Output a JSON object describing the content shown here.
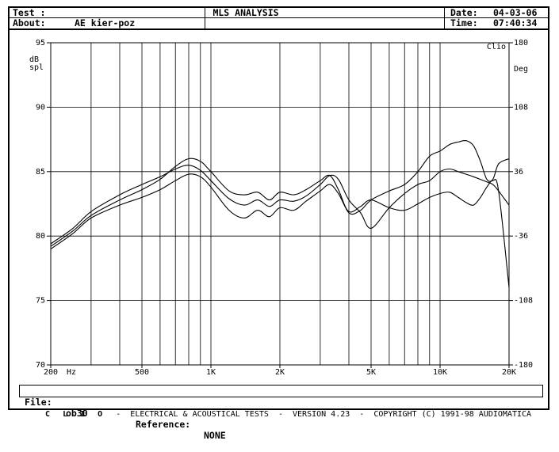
{
  "header": {
    "test_label": "Test :",
    "about_label": "About:",
    "about_value": "AE kier-poz",
    "title": "MLS ANALYSIS",
    "date_label": "Date:",
    "date_value": "04-03-06",
    "time_label": "Time:",
    "time_value": "07:40:34"
  },
  "file_bar": {
    "file_label": "File:",
    "file_value": "ob30",
    "reference_label": "Reference:",
    "reference_value": "NONE"
  },
  "footer": {
    "brand": "C L I O",
    "text": "-  ELECTRICAL & ACOUSTICAL TESTS  -  VERSION 4.23  -  COPYRIGHT (C) 1991-98 AUDIOMATICA"
  },
  "chart_data": {
    "type": "line",
    "xscale": "log",
    "xlim": [
      200,
      20000
    ],
    "ylim": [
      70,
      95
    ],
    "y2lim": [
      -180,
      180
    ],
    "x_ticks": [
      {
        "value": 200,
        "label": "200"
      },
      {
        "value": 500,
        "label": "500"
      },
      {
        "value": 1000,
        "label": "1K"
      },
      {
        "value": 2000,
        "label": "2K"
      },
      {
        "value": 5000,
        "label": "5K"
      },
      {
        "value": 10000,
        "label": "10K"
      },
      {
        "value": 20000,
        "label": "20K"
      }
    ],
    "x_unit": "Hz",
    "y_ticks": [
      70,
      75,
      80,
      85,
      90,
      95
    ],
    "y2_ticks": [
      -180,
      -108,
      -36,
      36,
      108,
      180
    ],
    "ylabel": [
      "dB",
      "spl"
    ],
    "y2label": "Deg",
    "corner_label": "Clio",
    "grid": true,
    "series": [
      {
        "x": [
          200,
          250,
          300,
          400,
          500,
          600,
          700,
          800,
          900,
          1000,
          1200,
          1400,
          1600,
          1800,
          2000,
          2300,
          2600,
          3000,
          3300,
          3600,
          4000,
          4500,
          5000,
          6000,
          7000,
          8000,
          9000,
          10000,
          11000,
          12000,
          13000,
          14000,
          15000,
          16000,
          17000,
          18000,
          20000
        ],
        "y": [
          79.2,
          80.4,
          81.6,
          82.8,
          83.6,
          84.4,
          85.4,
          86.0,
          85.8,
          85.0,
          83.5,
          83.2,
          83.4,
          82.8,
          83.4,
          83.2,
          83.6,
          84.3,
          84.7,
          83.6,
          81.8,
          82.0,
          82.8,
          83.5,
          84.0,
          85.0,
          86.2,
          86.6,
          87.1,
          87.3,
          87.4,
          87.0,
          85.8,
          84.4,
          84.4,
          85.6,
          86.0
        ]
      },
      {
        "x": [
          200,
          250,
          300,
          400,
          500,
          600,
          700,
          800,
          900,
          1000,
          1200,
          1400,
          1600,
          1800,
          2000,
          2300,
          2600,
          3000,
          3300,
          3600,
          4000,
          4500,
          5000,
          6000,
          7000,
          8000,
          9000,
          10000,
          11000,
          12000,
          13000,
          14000,
          15000,
          16000,
          17000,
          18000,
          20000
        ],
        "y": [
          79.4,
          80.6,
          81.9,
          83.2,
          84.0,
          84.6,
          85.2,
          85.5,
          85.1,
          84.3,
          82.9,
          82.4,
          82.8,
          82.3,
          82.8,
          82.7,
          83.1,
          84.0,
          84.7,
          84.4,
          82.8,
          81.8,
          80.6,
          82.2,
          83.3,
          84.0,
          84.3,
          85.0,
          85.2,
          85.0,
          84.8,
          84.6,
          84.4,
          84.2,
          84.0,
          83.5,
          82.4
        ]
      },
      {
        "x": [
          200,
          250,
          300,
          400,
          500,
          600,
          700,
          800,
          900,
          1000,
          1200,
          1400,
          1600,
          1800,
          2000,
          2300,
          2600,
          3000,
          3300,
          3600,
          4000,
          4500,
          5000,
          6000,
          7000,
          8000,
          9000,
          10000,
          11000,
          12000,
          13000,
          14000,
          15000,
          16000,
          17000,
          18000,
          20000
        ],
        "y": [
          79.0,
          80.2,
          81.4,
          82.4,
          83.0,
          83.6,
          84.3,
          84.8,
          84.6,
          83.8,
          82.0,
          81.4,
          82.0,
          81.5,
          82.2,
          82.0,
          82.7,
          83.5,
          84.0,
          83.3,
          81.9,
          82.3,
          82.8,
          82.2,
          82.0,
          82.5,
          83.0,
          83.3,
          83.4,
          83.0,
          82.6,
          82.4,
          83.0,
          83.8,
          84.3,
          83.5,
          76.0
        ]
      }
    ]
  }
}
